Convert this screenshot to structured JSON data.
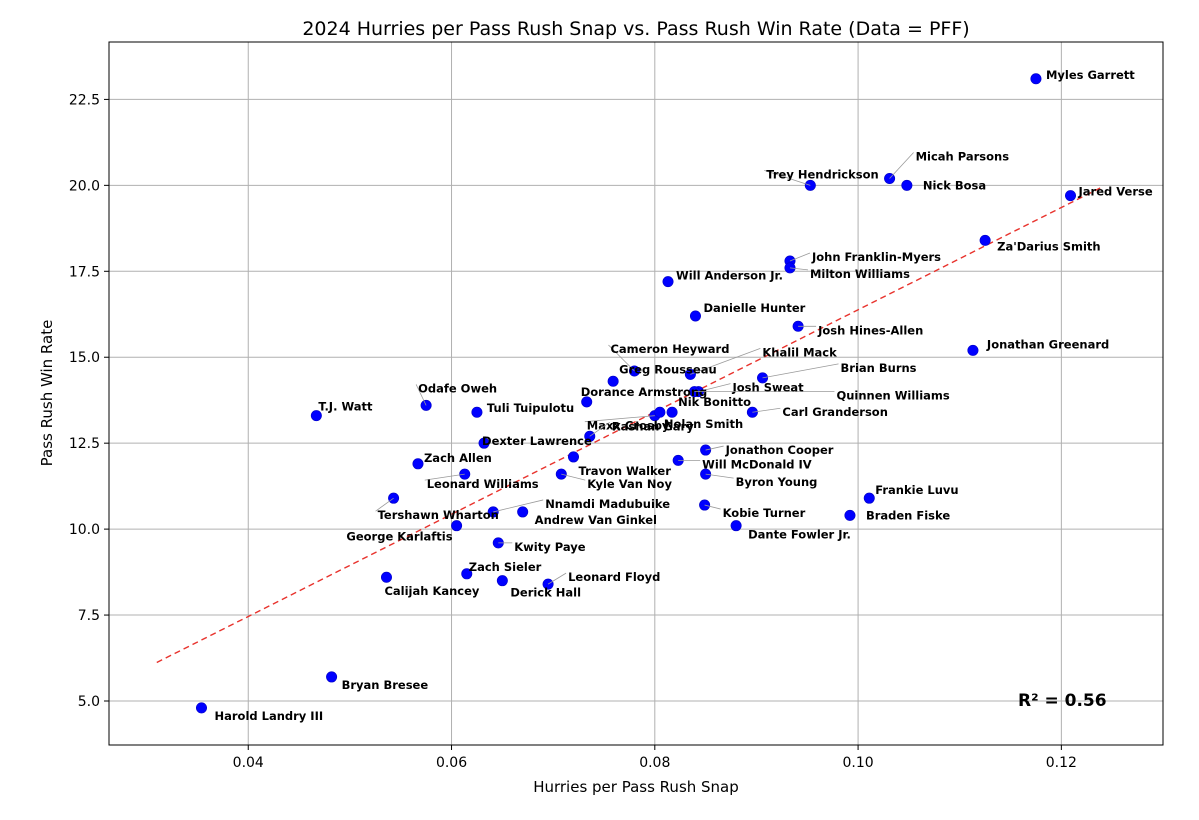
{
  "chart_data": {
    "type": "scatter",
    "title": "2024 Hurries per Pass Rush Snap vs. Pass Rush Win Rate (Data = PFF)",
    "xlabel": "Hurries per Pass Rush Snap",
    "ylabel": "Pass Rush Win Rate",
    "xlim": [
      0.0263,
      0.13
    ],
    "ylim": [
      3.72,
      24.17
    ],
    "xticks": [
      0.04,
      0.06,
      0.08,
      0.1,
      0.12
    ],
    "xtick_labels": [
      "0.04",
      "0.06",
      "0.08",
      "0.10",
      "0.12"
    ],
    "yticks": [
      5.0,
      7.5,
      10.0,
      12.5,
      15.0,
      17.5,
      20.0,
      22.5
    ],
    "ytick_labels": [
      "5.0",
      "7.5",
      "10.0",
      "12.5",
      "15.0",
      "17.5",
      "20.0",
      "22.5"
    ],
    "grid": true,
    "point_color": "#0000ff",
    "trendline": {
      "color": "#e8322c",
      "style": "dashed",
      "x": [
        0.031,
        0.124
      ],
      "y": [
        6.12,
        19.95
      ]
    },
    "r_squared_label": "R² = 0.56",
    "points": [
      {
        "name": "Myles Garrett",
        "x": 0.1175,
        "y": 23.1
      },
      {
        "name": "Micah Parsons",
        "x": 0.1031,
        "y": 20.2
      },
      {
        "name": "Trey Hendrickson",
        "x": 0.0953,
        "y": 20.0
      },
      {
        "name": "Nick Bosa",
        "x": 0.1048,
        "y": 20.0
      },
      {
        "name": "Jared Verse",
        "x": 0.1209,
        "y": 19.7
      },
      {
        "name": "Za'Darius Smith",
        "x": 0.1125,
        "y": 18.4
      },
      {
        "name": "John Franklin-Myers",
        "x": 0.0933,
        "y": 17.8
      },
      {
        "name": "Milton Williams",
        "x": 0.0933,
        "y": 17.6
      },
      {
        "name": "Will Anderson Jr.",
        "x": 0.0813,
        "y": 17.2
      },
      {
        "name": "Danielle Hunter",
        "x": 0.084,
        "y": 16.2
      },
      {
        "name": "Josh Hines-Allen",
        "x": 0.0941,
        "y": 15.9
      },
      {
        "name": "Jonathan Greenard",
        "x": 0.1113,
        "y": 15.2
      },
      {
        "name": "Cameron Heyward",
        "x": 0.078,
        "y": 14.6
      },
      {
        "name": "Khalil Mack",
        "x": 0.0835,
        "y": 14.5
      },
      {
        "name": "Greg Rousseau",
        "x": 0.0759,
        "y": 14.3
      },
      {
        "name": "Brian Burns",
        "x": 0.0906,
        "y": 14.4
      },
      {
        "name": "Josh Sweat",
        "x": 0.0843,
        "y": 14.0
      },
      {
        "name": "Dorance Armstrong",
        "x": 0.0733,
        "y": 13.7
      },
      {
        "name": "Quinnen Williams",
        "x": 0.0839,
        "y": 14.0
      },
      {
        "name": "T.J. Watt",
        "x": 0.0467,
        "y": 13.3
      },
      {
        "name": "Odafe Oweh",
        "x": 0.0575,
        "y": 13.6
      },
      {
        "name": "Tuli Tuipulotu",
        "x": 0.0625,
        "y": 13.4
      },
      {
        "name": "Nik Bonitto",
        "x": 0.0817,
        "y": 13.4
      },
      {
        "name": "Carl Granderson",
        "x": 0.0896,
        "y": 13.4
      },
      {
        "name": "Maxx Crosby",
        "x": 0.08,
        "y": 13.3
      },
      {
        "name": "Nolan Smith",
        "x": 0.0805,
        "y": 13.4
      },
      {
        "name": "Dexter Lawrence",
        "x": 0.0632,
        "y": 12.5
      },
      {
        "name": "Rashan Gary",
        "x": 0.0736,
        "y": 12.7
      },
      {
        "name": "Jonathon Cooper",
        "x": 0.085,
        "y": 12.3
      },
      {
        "name": "Zach Allen",
        "x": 0.0567,
        "y": 11.9
      },
      {
        "name": "Travon Walker",
        "x": 0.072,
        "y": 12.1
      },
      {
        "name": "Will McDonald IV",
        "x": 0.0823,
        "y": 12.0
      },
      {
        "name": "Leonard Williams",
        "x": 0.0613,
        "y": 11.6
      },
      {
        "name": "Kyle Van Noy",
        "x": 0.0708,
        "y": 11.6
      },
      {
        "name": "Byron Young",
        "x": 0.085,
        "y": 11.6
      },
      {
        "name": "Frankie Luvu",
        "x": 0.1011,
        "y": 10.9
      },
      {
        "name": "Tershawn Wharton",
        "x": 0.0543,
        "y": 10.9
      },
      {
        "name": "Nnamdi Madubuike",
        "x": 0.0641,
        "y": 10.5
      },
      {
        "name": "Kobie Turner",
        "x": 0.0849,
        "y": 10.7
      },
      {
        "name": "Braden Fiske",
        "x": 0.0992,
        "y": 10.4
      },
      {
        "name": "Andrew Van Ginkel",
        "x": 0.067,
        "y": 10.5
      },
      {
        "name": "George Karlaftis",
        "x": 0.0605,
        "y": 10.1
      },
      {
        "name": "Dante Fowler Jr.",
        "x": 0.088,
        "y": 10.1
      },
      {
        "name": "Kwity Paye",
        "x": 0.0646,
        "y": 9.6
      },
      {
        "name": "Zach Sieler",
        "x": 0.0615,
        "y": 8.7
      },
      {
        "name": "Calijah Kancey",
        "x": 0.0536,
        "y": 8.6
      },
      {
        "name": "Derick Hall",
        "x": 0.065,
        "y": 8.5
      },
      {
        "name": "Leonard Floyd",
        "x": 0.0695,
        "y": 8.4
      },
      {
        "name": "Bryan Bresee",
        "x": 0.0482,
        "y": 5.7
      },
      {
        "name": "Harold Landry III",
        "x": 0.0354,
        "y": 4.8
      }
    ]
  }
}
